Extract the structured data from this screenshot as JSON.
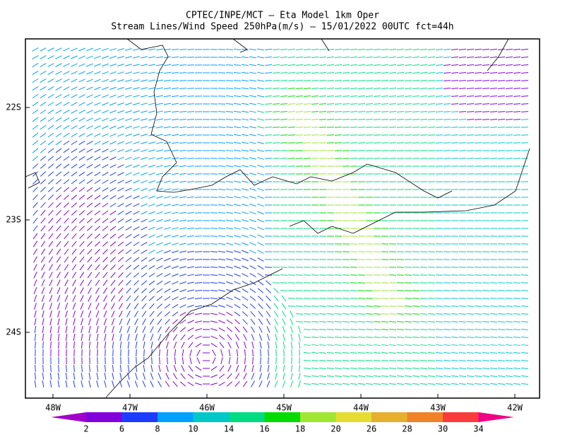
{
  "header": {
    "title_line1": "CPTEC/INPE/MCT —  Eta Model 1km Oper",
    "title_line2": "Stream Lines/Wind Speed 250hPa(m/s) — 15/01/2022 00UTC fct=44h"
  },
  "map": {
    "lat_labels": [
      "22S",
      "23S",
      "24S"
    ],
    "lon_labels": [
      "48W",
      "47W",
      "46W",
      "45W",
      "44W",
      "43W",
      "42W"
    ]
  },
  "colorbar": {
    "labels": [
      "2",
      "6",
      "8",
      "10",
      "14",
      "16",
      "18",
      "20",
      "26",
      "28",
      "30",
      "34"
    ],
    "colors": [
      "#a000c8",
      "#8200dc",
      "#1e3cff",
      "#00a0ff",
      "#00c8c8",
      "#00dc82",
      "#00dc00",
      "#a0e632",
      "#e6dc32",
      "#e6af2d",
      "#f08228",
      "#fa3c3c",
      "#f00082"
    ]
  }
}
